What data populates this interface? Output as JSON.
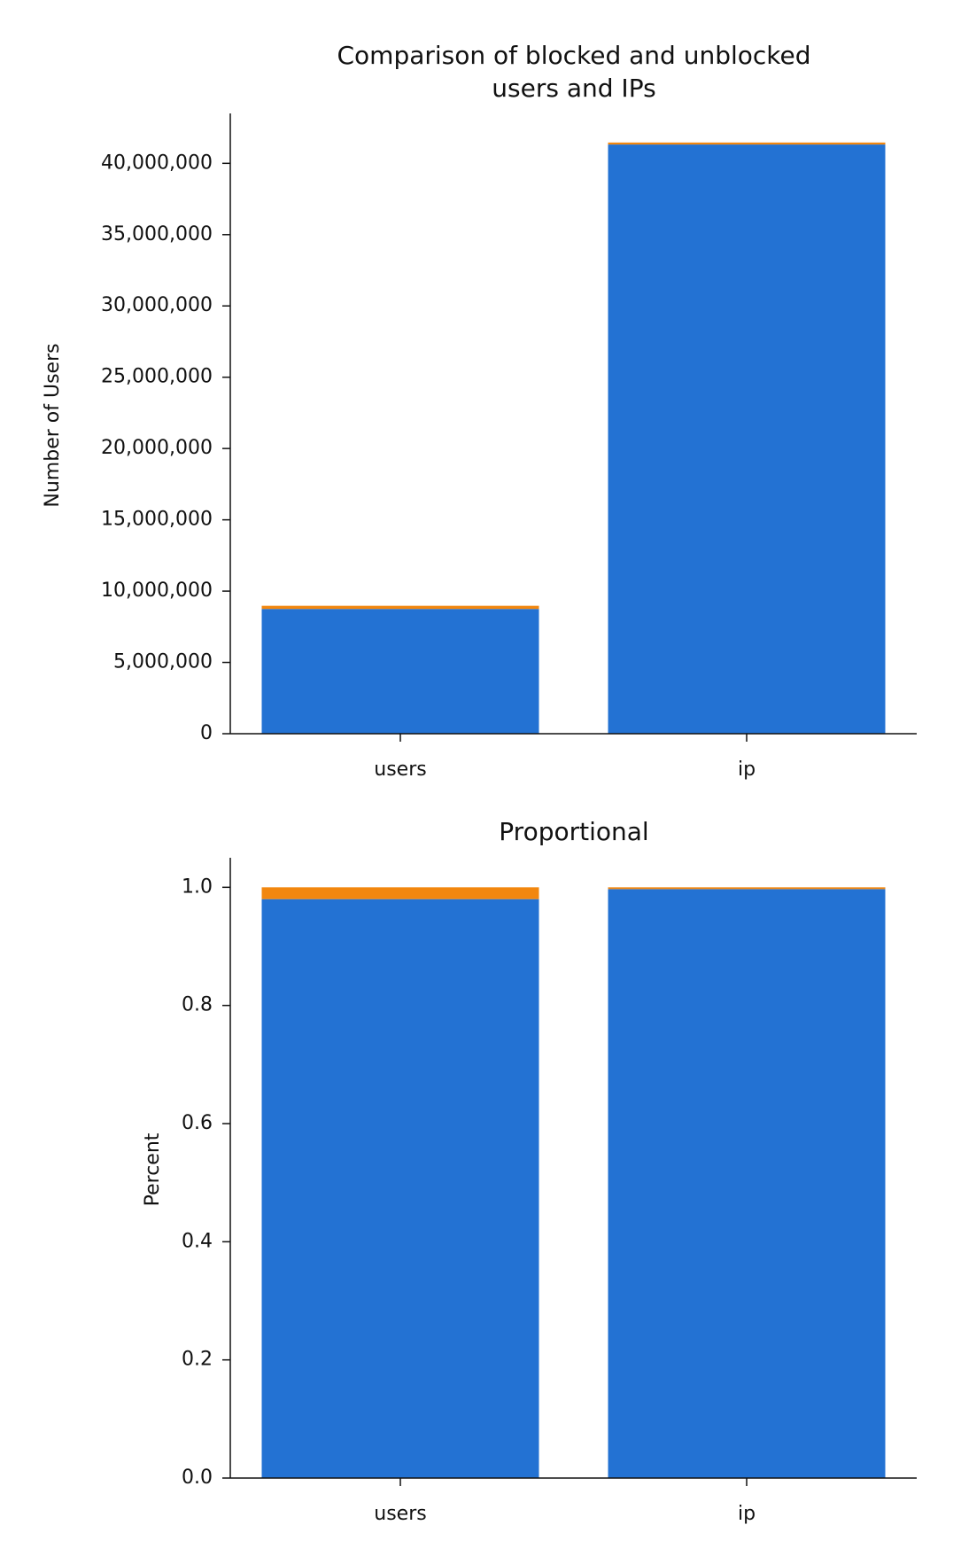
{
  "chart_data": [
    {
      "type": "bar",
      "stacked": true,
      "title": "Comparison of blocked and unblocked\nusers and IPs",
      "xlabel": "",
      "ylabel": "Number of Users",
      "categories": [
        "users",
        "ip"
      ],
      "series": [
        {
          "values": [
            8750000,
            41320000
          ],
          "color": "#2372d3"
        },
        {
          "values": [
            220000,
            140000
          ],
          "color": "#f2870f"
        }
      ],
      "ylim": [
        0,
        43500000
      ],
      "yticks": [
        0,
        5000000,
        10000000,
        15000000,
        20000000,
        25000000,
        30000000,
        35000000,
        40000000
      ],
      "ytick_labels": [
        "0",
        "5,000,000",
        "10,000,000",
        "15,000,000",
        "20,000,000",
        "25,000,000",
        "30,000,000",
        "35,000,000",
        "40,000,000"
      ],
      "grid": false,
      "legend": "none"
    },
    {
      "type": "bar",
      "stacked": true,
      "title": "Proportional",
      "xlabel": "",
      "ylabel": "Percent",
      "categories": [
        "users",
        "ip"
      ],
      "series": [
        {
          "values": [
            0.98,
            0.997
          ],
          "color": "#2372d3"
        },
        {
          "values": [
            0.02,
            0.003
          ],
          "color": "#f2870f"
        }
      ],
      "ylim": [
        0,
        1.05
      ],
      "yticks": [
        0.0,
        0.2,
        0.4,
        0.6,
        0.8,
        1.0
      ],
      "ytick_labels": [
        "0.0",
        "0.2",
        "0.4",
        "0.6",
        "0.8",
        "1.0"
      ],
      "grid": false,
      "legend": "none"
    }
  ]
}
